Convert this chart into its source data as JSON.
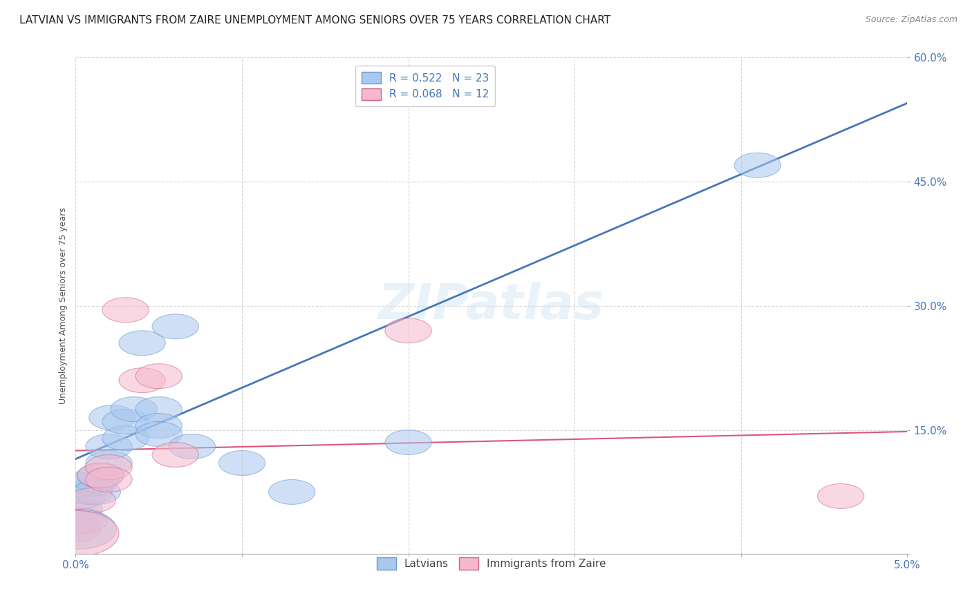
{
  "title": "LATVIAN VS IMMIGRANTS FROM ZAIRE UNEMPLOYMENT AMONG SENIORS OVER 75 YEARS CORRELATION CHART",
  "source": "Source: ZipAtlas.com",
  "ylabel": "Unemployment Among Seniors over 75 years",
  "xlim": [
    0.0,
    0.05
  ],
  "ylim": [
    0.0,
    0.6
  ],
  "xticks": [
    0.0,
    0.01,
    0.02,
    0.03,
    0.04,
    0.05
  ],
  "xticklabels": [
    "0.0%",
    "",
    "",
    "",
    "",
    "5.0%"
  ],
  "yticks": [
    0.0,
    0.15,
    0.3,
    0.45,
    0.6
  ],
  "yticklabels": [
    "",
    "15.0%",
    "30.0%",
    "45.0%",
    "60.0%"
  ],
  "latvian_R": "0.522",
  "latvian_N": "23",
  "zaire_R": "0.068",
  "zaire_N": "12",
  "latvian_color": "#a8c8f0",
  "zaire_color": "#f5b8cc",
  "latvian_edge_color": "#6699cc",
  "zaire_edge_color": "#cc6688",
  "latvian_line_color": "#4477bb",
  "zaire_line_color": "#dd5577",
  "tick_color": "#4477bb",
  "label_color": "#555555",
  "watermark": "ZIPatlas",
  "latvian_points": [
    [
      0.0002,
      0.055
    ],
    [
      0.0004,
      0.07
    ],
    [
      0.0008,
      0.075
    ],
    [
      0.001,
      0.085
    ],
    [
      0.0012,
      0.09
    ],
    [
      0.0013,
      0.075
    ],
    [
      0.0015,
      0.095
    ],
    [
      0.002,
      0.11
    ],
    [
      0.002,
      0.13
    ],
    [
      0.0022,
      0.165
    ],
    [
      0.003,
      0.14
    ],
    [
      0.003,
      0.16
    ],
    [
      0.0035,
      0.175
    ],
    [
      0.004,
      0.255
    ],
    [
      0.005,
      0.175
    ],
    [
      0.005,
      0.155
    ],
    [
      0.005,
      0.145
    ],
    [
      0.006,
      0.275
    ],
    [
      0.007,
      0.13
    ],
    [
      0.01,
      0.11
    ],
    [
      0.013,
      0.075
    ],
    [
      0.02,
      0.135
    ],
    [
      0.041,
      0.47
    ]
  ],
  "zaire_points": [
    [
      0.0001,
      0.03
    ],
    [
      0.0005,
      0.04
    ],
    [
      0.001,
      0.065
    ],
    [
      0.0015,
      0.095
    ],
    [
      0.002,
      0.105
    ],
    [
      0.002,
      0.09
    ],
    [
      0.003,
      0.295
    ],
    [
      0.004,
      0.21
    ],
    [
      0.005,
      0.215
    ],
    [
      0.006,
      0.12
    ],
    [
      0.02,
      0.27
    ],
    [
      0.046,
      0.07
    ]
  ],
  "latvian_line": [
    [
      0.0,
      0.115
    ],
    [
      0.05,
      0.545
    ]
  ],
  "zaire_line": [
    [
      0.0,
      0.125
    ],
    [
      0.05,
      0.148
    ]
  ],
  "title_fontsize": 11,
  "axis_label_fontsize": 9,
  "tick_fontsize": 11,
  "legend_fontsize": 11,
  "watermark_fontsize": 52,
  "background_color": "#ffffff",
  "grid_color": "#bbbbbb"
}
